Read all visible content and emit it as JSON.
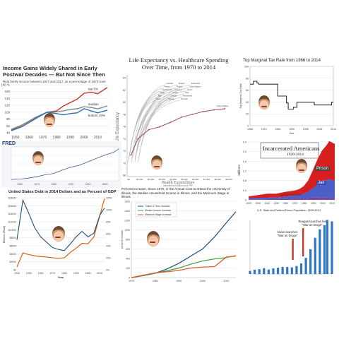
{
  "chart_data": [
    {
      "id": "p1",
      "type": "line",
      "title": "Income Gains Widely Shared in Early Postwar Decades — But Not Since Then",
      "subtitle": "Real family income between 1947 and 2017, as a percentage of 1973 level",
      "y_ticks": [
        "180 %",
        "160",
        "140",
        "120",
        "100",
        "80",
        "60",
        "40"
      ],
      "x_ticks": [
        "1950",
        "1960",
        "1970",
        "1980",
        "1990",
        "2000",
        "2010"
      ],
      "xlim": [
        1947,
        2017
      ],
      "ylim": [
        40,
        180
      ],
      "series": [
        {
          "name": "top 5%",
          "color": "#c0392b",
          "x": [
            1947,
            1955,
            1965,
            1973,
            1980,
            1985,
            1990,
            1995,
            2000,
            2005,
            2010,
            2017
          ],
          "y": [
            48,
            62,
            85,
            100,
            104,
            118,
            128,
            138,
            155,
            158,
            154,
            172
          ]
        },
        {
          "name": "median",
          "color": "#7f8c8d",
          "x": [
            1947,
            1955,
            1965,
            1973,
            1980,
            1985,
            1990,
            1995,
            2000,
            2005,
            2010,
            2017
          ],
          "y": [
            50,
            63,
            86,
            100,
            101,
            104,
            108,
            110,
            116,
            114,
            110,
            118
          ]
        },
        {
          "name": "bottom 20%",
          "color": "#2c6fb0",
          "x": [
            1947,
            1955,
            1965,
            1973,
            1980,
            1985,
            1990,
            1995,
            2000,
            2005,
            2010,
            2017
          ],
          "y": [
            46,
            58,
            82,
            100,
            96,
            92,
            96,
            98,
            110,
            104,
            98,
            106
          ]
        }
      ]
    },
    {
      "id": "p2",
      "type": "scatter",
      "title": "Life Expectancy vs. Healthcare Spending Over Time, from 1970 to 2014",
      "ylabel": "Life Expectancy",
      "xlabel": "Health Expenditure",
      "x_ticks": [
        "$0",
        "$1,000",
        "$2,000",
        "$3,000",
        "$4,000",
        "$5,000",
        "$6,000",
        "$7,000",
        "$8,000",
        "$9,000"
      ],
      "y_ticks": [
        "84",
        "82",
        "80",
        "78",
        "76",
        "74",
        "72",
        "70",
        "68"
      ],
      "xlim": [
        0,
        9500
      ],
      "ylim": [
        67,
        85
      ],
      "footnote": "adjusted for inflation and PPP",
      "countries": [
        "Japan",
        "Italy",
        "Spain",
        "South Korea",
        "France",
        "Australia",
        "Sweden",
        "Canada",
        "Austria",
        "Germany",
        "Finland",
        "Belgium",
        "Denmark",
        "Netherlands",
        "Chile",
        "Mexico",
        "United Kingdom",
        "Switzerland",
        "United States"
      ],
      "series": [
        {
          "name": "United States",
          "color": "#9b3b3b",
          "x": [
            350,
            1000,
            2000,
            3000,
            4000,
            5000,
            6000,
            7000,
            8000,
            9000
          ],
          "y": [
            70.8,
            73.7,
            75.3,
            75.8,
            76.6,
            77.5,
            78.0,
            78.5,
            78.8,
            79.0
          ]
        }
      ]
    },
    {
      "id": "p3",
      "type": "line",
      "title": "Top Marginal Tax Rate from 1966 to 2014",
      "ylabel": "Top Marginal Tax Rate",
      "xlabel": "Year",
      "x_ticks": [
        "1966",
        "1974",
        "1982",
        "1990",
        "1998",
        "2006",
        "2014"
      ],
      "y_ticks": [
        "100",
        "80",
        "60",
        "40",
        "20",
        "0"
      ],
      "xlim": [
        1966,
        2014
      ],
      "ylim": [
        0,
        100
      ],
      "series": [
        {
          "name": "Top Marginal Tax Rate",
          "color": "#333333",
          "x": [
            1966,
            1968,
            1970,
            1971,
            1981,
            1982,
            1986,
            1987,
            1988,
            1991,
            1993,
            2000,
            2003,
            2012,
            2013,
            2014
          ],
          "y": [
            70,
            75,
            72,
            70,
            70,
            50,
            50,
            38.5,
            28,
            31,
            39.6,
            39.6,
            35,
            35,
            39.6,
            39.6
          ]
        }
      ]
    },
    {
      "id": "p4",
      "type": "area",
      "title": "Incarcerated Americans",
      "subtitle": "1920-2014",
      "ylabel": "Millions",
      "x_ticks": [
        "1920",
        "1930",
        "1940",
        "1950",
        "1960",
        "1970",
        "1980",
        "1990",
        "2000",
        "2010"
      ],
      "y_ticks": [
        "2.4",
        "2.0",
        "1.6",
        "1.2",
        "0.8",
        "0.4",
        "0"
      ],
      "xlim": [
        1920,
        2014
      ],
      "ylim": [
        0,
        2.5
      ],
      "labels": {
        "prison": "Prison",
        "jail": "Jail",
        "juvenile": "Juvenile Detention"
      },
      "series": [
        {
          "name": "Prison",
          "color": "#d62020",
          "x": [
            1920,
            1930,
            1940,
            1950,
            1960,
            1970,
            1975,
            1980,
            1985,
            1990,
            1995,
            2000,
            2005,
            2008,
            2014
          ],
          "y": [
            0.08,
            0.12,
            0.17,
            0.16,
            0.21,
            0.2,
            0.24,
            0.32,
            0.48,
            0.74,
            1.08,
            1.33,
            1.46,
            1.61,
            1.56
          ]
        },
        {
          "name": "Jail",
          "color": "#4a5fc7",
          "x": [
            1920,
            1930,
            1940,
            1950,
            1960,
            1970,
            1975,
            1980,
            1985,
            1990,
            1995,
            2000,
            2005,
            2008,
            2014
          ],
          "y": [
            0.05,
            0.06,
            0.06,
            0.07,
            0.08,
            0.12,
            0.14,
            0.18,
            0.26,
            0.4,
            0.5,
            0.62,
            0.74,
            0.78,
            0.74
          ]
        },
        {
          "name": "Juvenile Detention",
          "color": "#7a44a6",
          "x": [
            1920,
            1930,
            1940,
            1950,
            1960,
            1970,
            1975,
            1980,
            1985,
            1990,
            1995,
            2000,
            2005,
            2008,
            2014
          ],
          "y": [
            0.02,
            0.02,
            0.03,
            0.03,
            0.05,
            0.07,
            0.07,
            0.07,
            0.08,
            0.1,
            0.11,
            0.12,
            0.1,
            0.09,
            0.06
          ]
        }
      ]
    },
    {
      "id": "p5",
      "type": "line",
      "title": "FRED",
      "x_ticks": [
        "1960",
        "1970",
        "1980",
        "1990",
        "2000",
        "2010"
      ],
      "xlim": [
        1955,
        2018
      ],
      "ylim": [
        0,
        500
      ],
      "series": [
        {
          "name": "",
          "color": "#3c5a8a",
          "x": [
            1955,
            1960,
            1965,
            1970,
            1975,
            1978,
            1980,
            1982,
            1985,
            1990,
            1995,
            2000,
            2005,
            2010,
            2015,
            2018
          ],
          "y": [
            20,
            25,
            40,
            60,
            90,
            100,
            110,
            130,
            160,
            200,
            230,
            280,
            330,
            380,
            420,
            470
          ]
        }
      ]
    },
    {
      "id": "p6",
      "type": "line",
      "title": "United States Debt in 2014 Dollars and as Percent of GDP",
      "xlabel": "Year",
      "ylabel": "Billions (Real)",
      "x_ticks": [
        "1940",
        "1950",
        "1960",
        "1970",
        "1980",
        "1990",
        "2000",
        "2010"
      ],
      "y_ticks_left": [
        "$18000",
        "$16000",
        "$14000",
        "$12000",
        "$10000",
        "$8000",
        "$6000",
        "$4000",
        "$2000",
        "$0"
      ],
      "y_ticks_right": [
        "120%",
        "100%",
        "80%",
        "60%",
        "40%",
        "20%",
        "0%"
      ],
      "xlim": [
        1940,
        2014
      ],
      "series": [
        {
          "name": "Debt (Billions, Real)",
          "color": "#d35400",
          "x": [
            1940,
            1945,
            1950,
            1955,
            1960,
            1965,
            1970,
            1975,
            1980,
            1985,
            1990,
            1995,
            2000,
            2005,
            2010,
            2014
          ],
          "y": [
            700,
            4200,
            3800,
            3500,
            3300,
            3200,
            3000,
            2900,
            3000,
            4300,
            5400,
            6600,
            6500,
            8200,
            13500,
            17800
          ]
        },
        {
          "name": "Debt (% of GDP)",
          "color": "#1f4e79",
          "x": [
            1940,
            1945,
            1950,
            1955,
            1960,
            1965,
            1970,
            1975,
            1980,
            1985,
            1990,
            1995,
            2000,
            2005,
            2010,
            2014
          ],
          "y": [
            50,
            116,
            94,
            70,
            55,
            46,
            37,
            34,
            32,
            43,
            55,
            64,
            55,
            61,
            91,
            103
          ]
        }
      ]
    },
    {
      "id": "p7",
      "type": "line",
      "title": "Percent Increase, Since 1970, in the Annual Cost to Attend the University of Illinois, the Median Household Income in Illinois, and the Minimum Wage in Illinois",
      "ylabel": "percent increase",
      "x_ticks": [
        "1970",
        "1980",
        "1990",
        "2000",
        "2010"
      ],
      "y_ticks": [
        "1600",
        "1400",
        "1200",
        "1000",
        "800",
        "600",
        "400",
        "200",
        "0"
      ],
      "xlim": [
        1970,
        2014
      ],
      "ylim": [
        0,
        1600
      ],
      "series": [
        {
          "name": "Tuition & Fees Increase",
          "color": "#1f4e79",
          "x": [
            1970,
            1975,
            1980,
            1985,
            1990,
            1995,
            2000,
            2005,
            2010,
            2014
          ],
          "y": [
            0,
            40,
            90,
            180,
            300,
            450,
            600,
            850,
            1150,
            1380
          ]
        },
        {
          "name": "Median Income Increase",
          "color": "#3a9a3a",
          "x": [
            1970,
            1975,
            1980,
            1985,
            1990,
            1995,
            2000,
            2005,
            2010,
            2014
          ],
          "y": [
            0,
            40,
            90,
            140,
            200,
            280,
            350,
            390,
            420,
            460
          ]
        },
        {
          "name": "Minimum Wage Increase",
          "color": "#e05a2b",
          "x": [
            1970,
            1975,
            1980,
            1985,
            1990,
            1995,
            2000,
            2005,
            2010,
            2014
          ],
          "y": [
            0,
            50,
            100,
            120,
            150,
            200,
            220,
            230,
            430,
            450
          ]
        }
      ]
    },
    {
      "id": "p8",
      "type": "bar",
      "title": "U.S. State and Federal Prison Population, 1925-2013",
      "annotations": [
        "Reagan launches his \"War on Drugs\"",
        "Nixon launches \"War on Drugs\""
      ],
      "xlim": [
        1925,
        2013
      ],
      "ylim": [
        0,
        1600000
      ],
      "x": [
        1925,
        1930,
        1935,
        1940,
        1945,
        1950,
        1955,
        1960,
        1965,
        1970,
        1975,
        1980,
        1985,
        1990,
        1995,
        2000,
        2005,
        2008,
        2013
      ],
      "values": [
        92000,
        130000,
        144000,
        174000,
        133000,
        166000,
        186000,
        213000,
        211000,
        196000,
        240000,
        316000,
        480000,
        740000,
        1080000,
        1330000,
        1460000,
        1610000,
        1570000
      ],
      "color": "#2e75c6"
    }
  ]
}
